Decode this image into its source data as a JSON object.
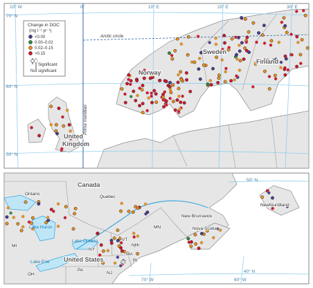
{
  "europe_map": {
    "longitudes": [
      "10° W",
      "0°",
      "10° E",
      "20° E",
      "30° E"
    ],
    "latitudes": [
      "70° N",
      "60° N",
      "50° N"
    ],
    "arctic_circle": "Arctic circle",
    "prime_meridian": "Prime meridian",
    "countries": [
      "Norway",
      "Sweden",
      "Finland"
    ],
    "uk_label": [
      "United",
      "Kingdom"
    ],
    "legend": {
      "title": "Change in DOC",
      "unit": "(mg l⁻¹ yr⁻¹)",
      "items": [
        {
          "label": "<0.00",
          "color": "#4a3f8f"
        },
        {
          "label": "0.00–0.02",
          "color": "#2e8b3e"
        },
        {
          "label": "0.02–0.15",
          "color": "#e8901e"
        },
        {
          "label": ">0.15",
          "color": "#d4162c"
        }
      ],
      "significant": "Significant",
      "not_significant": "Not significant"
    }
  },
  "north_america_map": {
    "country_labels": [
      "Canada",
      "United States"
    ],
    "provinces": [
      "Ontario",
      "Quebec",
      "Newfoundland",
      "New Brunswick",
      "Nova Scotia"
    ],
    "states": [
      "MN",
      "VT",
      "NH",
      "MA",
      "CT",
      "RI",
      "NY",
      "PA",
      "OH",
      "MI",
      "NJ"
    ],
    "lakes": [
      "Lake Huron",
      "Lake Ontario",
      "Lake Erie"
    ],
    "latitudes": [
      "50° N",
      "40° N"
    ],
    "longitudes": [
      "70° W",
      "60° W"
    ]
  }
}
